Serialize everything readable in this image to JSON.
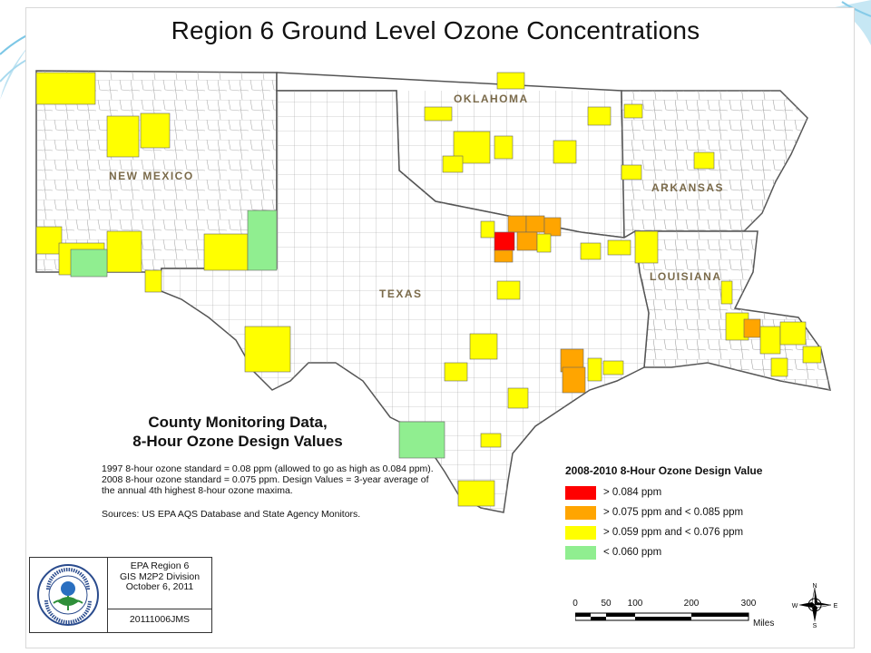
{
  "map": {
    "title": "Region 6 Ground Level Ozone Concentrations",
    "states": [
      "NEW MEXICO",
      "OKLAHOMA",
      "ARKANSAS",
      "TEXAS",
      "LOUISIANA"
    ],
    "colors": {
      "land": "#ffffff",
      "county_line": "#9a9a9a",
      "state_line": "#555555",
      "red": "#ff0000",
      "orange": "#ffa500",
      "yellow": "#ffff00",
      "green": "#90ee90"
    }
  },
  "notes": {
    "heading_line1": "County Monitoring Data,",
    "heading_line2": "8-Hour Ozone Design Values",
    "line1": "1997 8-hour ozone standard = 0.08 ppm (allowed to go as high as 0.084 ppm).",
    "line2": "2008 8-hour ozone standard = 0.075 ppm. Design Values = 3-year average of",
    "line3": "the annual 4th highest 8-hour ozone maxima.",
    "sources": "Sources: US EPA AQS Database and State Agency Monitors."
  },
  "legend": {
    "title": "2008-2010 8-Hour Ozone Design Value",
    "items": [
      {
        "label": "> 0.084 ppm",
        "color": "#ff0000"
      },
      {
        "label": "> 0.075 ppm and < 0.085 ppm",
        "color": "#ffa500"
      },
      {
        "label": "> 0.059 ppm and < 0.076 ppm",
        "color": "#ffff00"
      },
      {
        "label": "< 0.060 ppm",
        "color": "#90ee90"
      }
    ]
  },
  "stamp": {
    "seal_text": "UNITED STATES ENVIRONMENTAL PROTECTION AGENCY",
    "line1": "EPA Region 6",
    "line2": "GIS M2P2 Division",
    "line3": "October 6, 2011",
    "code": "20111006JMS"
  },
  "scale": {
    "ticks": [
      "0",
      "50",
      "100",
      "200",
      "300"
    ],
    "unit": "Miles"
  },
  "compass": {
    "n": "N",
    "s": "S",
    "e": "E",
    "w": "W"
  }
}
